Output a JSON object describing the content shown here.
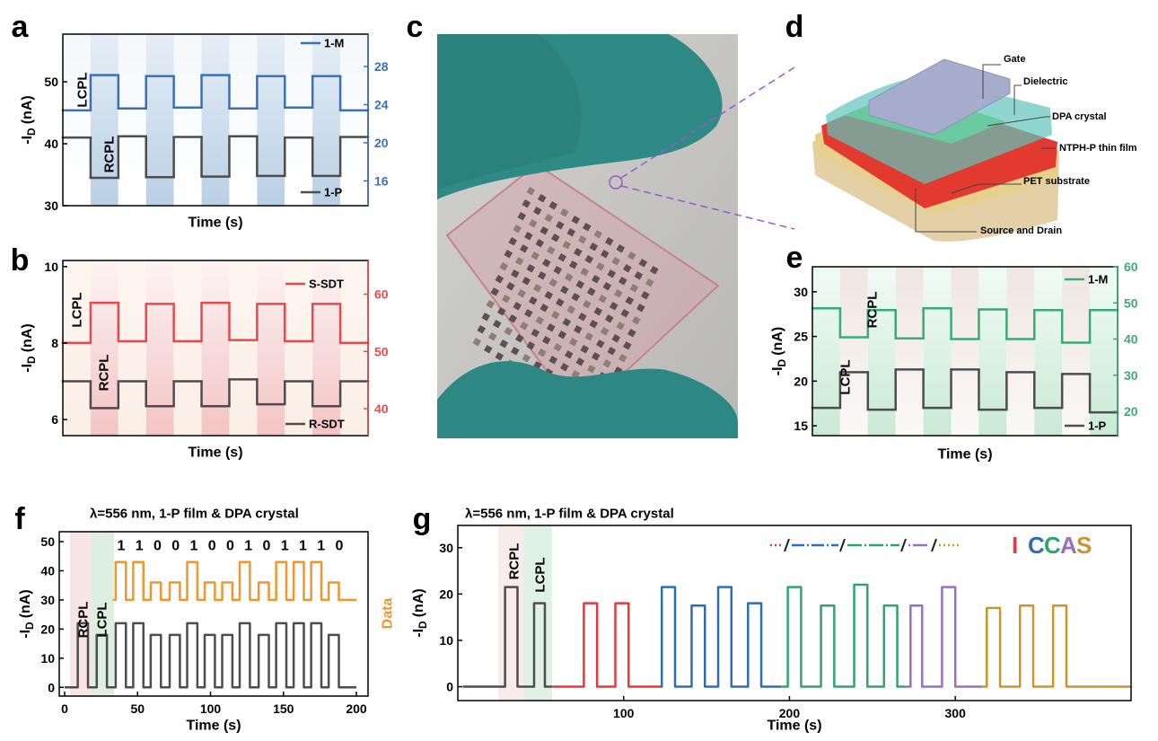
{
  "chart_data": [
    {
      "type": "line",
      "panel_label": "a",
      "step": true,
      "x_label": "Time (s)",
      "y_label": "-I",
      "y_label_sub": "D",
      "y_label_unit": "(nA)",
      "ylim": [
        30,
        57.7
      ],
      "yticks": [
        30,
        40,
        50
      ],
      "y2lim": [
        13.4,
        31.4
      ],
      "y2ticks": [
        16,
        20,
        24,
        28
      ],
      "annotations": [
        "LCPL",
        "RCPL"
      ],
      "series": [
        {
          "name": "1-M",
          "color": "#3a70b8",
          "axis": "y2",
          "values": [
            23.4,
            27.1,
            23.6,
            27.0,
            23.7,
            27.1,
            23.6,
            27.0,
            23.7,
            27.0,
            23.4
          ]
        },
        {
          "name": "1-P",
          "color": "#4d4d4d",
          "values": [
            41.0,
            34.5,
            41.2,
            34.6,
            41.1,
            34.7,
            41.2,
            34.8,
            41.0,
            34.8,
            41.1
          ]
        }
      ]
    },
    {
      "type": "line",
      "panel_label": "b",
      "step": true,
      "x_label": "Time (s)",
      "y_label": "-I",
      "y_label_sub": "D",
      "y_label_unit": "(nA)",
      "ylim": [
        5.58,
        10.16
      ],
      "yticks": [
        6,
        8,
        10
      ],
      "y2lim": [
        35.3,
        65.9
      ],
      "y2ticks": [
        40,
        50,
        60
      ],
      "annotations": [
        "LCPL",
        "RCPL"
      ],
      "series": [
        {
          "name": "S-SDT",
          "color": "#e8494e",
          "axis": "y2",
          "values": [
            51.5,
            58.5,
            51.8,
            58.3,
            51.8,
            58.5,
            52.0,
            58.3,
            51.8,
            58.3,
            51.5
          ]
        },
        {
          "name": "R-SDT",
          "color": "#4d4d4d",
          "values": [
            7.0,
            6.3,
            7.0,
            6.35,
            7.0,
            6.35,
            7.05,
            6.4,
            7.0,
            6.35,
            7.0
          ]
        }
      ]
    },
    {
      "type": "line",
      "panel_label": "e",
      "step": true,
      "x_label": "Time (s)",
      "y_label": "-I",
      "y_label_sub": "D",
      "y_label_unit": "(nA)",
      "ylim": [
        13.9,
        32.8
      ],
      "yticks": [
        15,
        20,
        25,
        30
      ],
      "y2lim": [
        13.3,
        60
      ],
      "y2ticks": [
        20,
        30,
        40,
        50,
        60
      ],
      "annotations": [
        "RCPL",
        "LCPL"
      ],
      "series": [
        {
          "name": "1-M",
          "color": "#3aaa78",
          "axis": "y2",
          "values": [
            48.5,
            40.5,
            48.0,
            40.2,
            48.5,
            40.0,
            48.2,
            40.0,
            48.0,
            39.0,
            48.0
          ]
        },
        {
          "name": "1-P",
          "color": "#4d4d4d",
          "values": [
            17.0,
            21.0,
            16.8,
            21.3,
            17.0,
            21.3,
            16.8,
            21.0,
            17.0,
            20.8,
            16.5
          ]
        }
      ]
    },
    {
      "type": "line",
      "panel_label": "f",
      "title": "λ=556 nm, 1-P film & DPA crystal",
      "x_label": "Time (s)",
      "y_label": "-I",
      "y_label_sub": "D",
      "y_label_unit": "(nA)",
      "y2_label": "Data",
      "xlim": [
        -3.7,
        208
      ],
      "xticks": [
        0,
        50,
        100,
        150,
        200
      ],
      "ylim": [
        -3,
        53.4
      ],
      "yticks": [
        0,
        10,
        20,
        30,
        40,
        50
      ],
      "annotations": [
        "RCPL",
        "LCPL"
      ],
      "bits": [
        1,
        1,
        0,
        0,
        1,
        0,
        0,
        1,
        0,
        1,
        1,
        1,
        0
      ],
      "series": [
        {
          "color": "#4d4d4d",
          "x": [
            0,
            9,
            9,
            16,
            16,
            22,
            22,
            29,
            29,
            35,
            35,
            42,
            42,
            47,
            47,
            54,
            54,
            59,
            59,
            66,
            66,
            72,
            72,
            79,
            79,
            84,
            84,
            91,
            91,
            96,
            96,
            103,
            103,
            108,
            108,
            115,
            115,
            120,
            120,
            127,
            127,
            133,
            133,
            140,
            140,
            145,
            145,
            152,
            152,
            157,
            157,
            164,
            164,
            169,
            169,
            176,
            176,
            181,
            181,
            188,
            188,
            200
          ],
          "values": [
            0,
            0,
            22,
            22,
            0,
            0,
            18,
            18,
            0,
            0,
            22,
            22,
            0,
            0,
            22,
            22,
            0,
            0,
            18,
            18,
            0,
            0,
            18,
            18,
            0,
            0,
            22,
            22,
            0,
            0,
            18,
            18,
            0,
            0,
            18,
            18,
            0,
            0,
            22,
            22,
            0,
            0,
            18,
            18,
            0,
            0,
            22,
            22,
            0,
            0,
            22,
            22,
            0,
            0,
            22,
            22,
            0,
            0,
            18,
            18,
            0,
            0
          ]
        },
        {
          "color": "#f0962e",
          "x": [
            33,
            35,
            35,
            42,
            42,
            47,
            47,
            54,
            54,
            59,
            59,
            66,
            66,
            72,
            72,
            79,
            79,
            84,
            84,
            91,
            91,
            96,
            96,
            103,
            103,
            108,
            108,
            115,
            115,
            120,
            120,
            127,
            127,
            133,
            133,
            140,
            140,
            145,
            145,
            152,
            152,
            157,
            157,
            164,
            164,
            169,
            169,
            176,
            176,
            181,
            181,
            188,
            188,
            200
          ],
          "values": [
            30,
            30,
            43,
            43,
            30,
            30,
            43,
            43,
            30,
            30,
            36,
            36,
            30,
            30,
            36,
            36,
            30,
            30,
            43,
            43,
            30,
            30,
            36,
            36,
            30,
            30,
            36,
            36,
            30,
            30,
            43,
            43,
            30,
            30,
            36,
            36,
            30,
            30,
            43,
            43,
            30,
            30,
            43,
            43,
            30,
            30,
            43,
            43,
            30,
            30,
            36,
            36,
            30,
            30
          ]
        }
      ]
    },
    {
      "type": "line",
      "panel_label": "g",
      "title": "λ=556 nm, 1-P film & DPA crystal",
      "x_label": "Time (s)",
      "y_label": "-I",
      "y_label_sub": "D",
      "y_label_unit": "(nA)",
      "xlim": [
        0,
        406
      ],
      "xticks": [
        100,
        200,
        300
      ],
      "ylim": [
        -3,
        34.8
      ],
      "yticks": [
        0,
        10,
        20,
        30
      ],
      "annotations": [
        "RCPL",
        "LCPL"
      ],
      "series": [
        {
          "color": "#4d4d4d",
          "x": [
            3,
            28.5,
            28.5,
            36,
            36,
            46,
            46,
            52.5,
            52.5,
            57
          ],
          "values": [
            0,
            0,
            21.5,
            21.5,
            0,
            0,
            18,
            18,
            0,
            0
          ]
        },
        {
          "name": "I",
          "color": "#e8383d",
          "x": [
            57,
            76,
            76,
            84,
            84,
            95,
            95,
            103,
            103,
            122
          ],
          "values": [
            0,
            0,
            18,
            18,
            0,
            0,
            18,
            18,
            0,
            0
          ]
        },
        {
          "name": "C",
          "color": "#2e6db4",
          "x": [
            122,
            123,
            123,
            131,
            131,
            141,
            141,
            149,
            149,
            157,
            157,
            165,
            165,
            175,
            175,
            183,
            183,
            195
          ],
          "values": [
            0,
            0,
            21.5,
            21.5,
            0,
            0,
            17.5,
            17.5,
            0,
            0,
            21.5,
            21.5,
            0,
            0,
            18,
            18,
            0,
            0
          ]
        },
        {
          "name": "C",
          "color": "#2fa56d",
          "x": [
            195,
            199,
            199,
            207,
            207,
            219,
            219,
            227,
            227,
            239,
            239,
            247,
            247,
            257,
            257,
            265,
            265,
            270
          ],
          "values": [
            0,
            0,
            21.5,
            21.5,
            0,
            0,
            17.5,
            17.5,
            0,
            0,
            22,
            22,
            0,
            0,
            17.5,
            17.5,
            0,
            0
          ]
        },
        {
          "name": "A",
          "color": "#9b6fc0",
          "x": [
            270,
            273,
            273,
            280,
            280,
            292,
            292,
            300,
            300,
            316
          ],
          "values": [
            0,
            0,
            17.5,
            17.5,
            0,
            0,
            21.5,
            21.5,
            0,
            0
          ]
        },
        {
          "name": "S",
          "color": "#c8962a",
          "x": [
            316,
            319,
            319,
            327,
            327,
            339,
            339,
            347,
            347,
            359,
            359,
            367,
            367,
            406
          ],
          "values": [
            0,
            0,
            17,
            17,
            0,
            0,
            17.5,
            17.5,
            0,
            0,
            17.5,
            17.5,
            0,
            0
          ]
        }
      ]
    }
  ],
  "photo": {
    "panel_label": "c"
  },
  "diagram": {
    "panel_label": "d",
    "labels": [
      "Gate",
      "Dielectric",
      "DPA crystal",
      "NTPH-P thin film",
      "PET substrate",
      "Source and Drain"
    ]
  }
}
